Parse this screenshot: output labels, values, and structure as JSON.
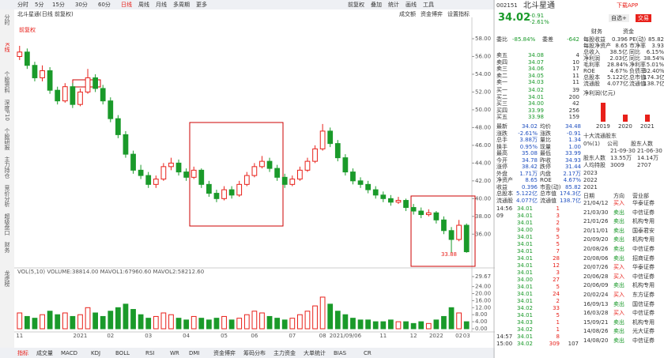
{
  "toolbar": {
    "tabs": [
      "分时",
      "5分",
      "15分",
      "30分",
      "60分",
      "日线",
      "周线",
      "月线",
      "多周期",
      "更多"
    ],
    "tools": [
      "前复权",
      "叠加",
      "统计",
      "画线",
      "工具"
    ]
  },
  "subbar": {
    "title": "北斗星通(日线 前复权)",
    "tools": [
      "成交额",
      "资金博弈",
      "设置指标"
    ]
  },
  "sidebar": [
    "分时",
    "K线",
    "个股资料",
    "深度F10",
    "个股研报",
    "主力持仓",
    "竞价分析",
    "超级盘口",
    "财务",
    "龙虎榜"
  ],
  "chart_data": {
    "type": "candlestick",
    "marker": "前复权",
    "annotation": "33.88",
    "categories": [
      "11",
      null,
      null,
      null,
      null,
      null,
      null,
      null,
      "2021",
      null,
      null,
      null,
      "02",
      null,
      null,
      null,
      null,
      "03",
      null,
      null,
      null,
      null,
      "04",
      null,
      null,
      null,
      null,
      "05",
      null,
      null,
      null,
      "06",
      null,
      null,
      null,
      null,
      "07",
      null,
      null,
      null,
      "08",
      null,
      null,
      "2021/09/06",
      null,
      null,
      null,
      null,
      "11",
      null,
      null,
      null,
      "12",
      null,
      null,
      "2022",
      null,
      null,
      "02",
      "03"
    ],
    "candles": [
      [
        56.0,
        57.2,
        55.6,
        56.5
      ],
      [
        56.5,
        56.9,
        54.6,
        55.0
      ],
      [
        55.0,
        55.4,
        53.2,
        53.6
      ],
      [
        53.6,
        55.0,
        53.2,
        54.4
      ],
      [
        54.4,
        54.8,
        51.8,
        52.2
      ],
      [
        52.2,
        52.6,
        50.6,
        51.0
      ],
      [
        51.0,
        53.0,
        50.8,
        52.6
      ],
      [
        52.6,
        53.0,
        50.2,
        50.6
      ],
      [
        50.6,
        52.4,
        50.4,
        52.0
      ],
      [
        52.0,
        54.6,
        51.8,
        53.6
      ],
      [
        53.6,
        54.0,
        52.0,
        52.4
      ],
      [
        52.4,
        52.8,
        50.6,
        51.0
      ],
      [
        51.0,
        51.4,
        48.6,
        49.0
      ],
      [
        49.0,
        49.4,
        46.8,
        47.2
      ],
      [
        47.2,
        47.6,
        44.6,
        45.0
      ],
      [
        45.0,
        45.4,
        42.8,
        43.2
      ],
      [
        43.2,
        43.8,
        42.2,
        42.6
      ],
      [
        42.6,
        43.0,
        41.2,
        41.6
      ],
      [
        41.6,
        42.6,
        41.2,
        42.2
      ],
      [
        42.2,
        44.0,
        42.0,
        43.6
      ],
      [
        43.6,
        44.6,
        43.2,
        44.0
      ],
      [
        44.0,
        44.4,
        42.6,
        43.0
      ],
      [
        43.0,
        43.4,
        42.0,
        42.4
      ],
      [
        42.4,
        43.6,
        42.2,
        43.2
      ],
      [
        43.2,
        43.4,
        41.2,
        41.6
      ],
      [
        41.6,
        42.0,
        40.2,
        40.6
      ],
      [
        40.6,
        41.0,
        39.6,
        40.0
      ],
      [
        40.0,
        41.4,
        39.8,
        41.0
      ],
      [
        41.0,
        41.4,
        40.0,
        40.4
      ],
      [
        40.4,
        42.0,
        40.2,
        41.6
      ],
      [
        41.6,
        43.0,
        41.4,
        42.6
      ],
      [
        42.6,
        44.0,
        42.4,
        43.6
      ],
      [
        43.6,
        44.8,
        43.4,
        44.2
      ],
      [
        44.2,
        44.6,
        43.0,
        43.4
      ],
      [
        43.4,
        43.8,
        42.0,
        42.4
      ],
      [
        42.4,
        42.8,
        41.2,
        41.6
      ],
      [
        41.6,
        42.6,
        41.4,
        42.2
      ],
      [
        42.2,
        43.6,
        42.0,
        43.2
      ],
      [
        43.2,
        44.6,
        43.0,
        44.2
      ],
      [
        44.2,
        46.0,
        44.0,
        45.6
      ],
      [
        45.6,
        48.4,
        45.4,
        47.6
      ],
      [
        47.6,
        48.0,
        45.8,
        46.2
      ],
      [
        46.2,
        46.6,
        44.2,
        44.6
      ],
      [
        44.6,
        45.0,
        42.6,
        43.0
      ],
      [
        43.0,
        43.4,
        41.6,
        42.0
      ],
      [
        42.0,
        42.4,
        41.2,
        41.6
      ],
      [
        41.6,
        42.0,
        40.6,
        41.0
      ],
      [
        41.0,
        41.4,
        40.0,
        40.4
      ],
      [
        40.4,
        40.8,
        39.6,
        40.0
      ],
      [
        40.0,
        40.4,
        39.2,
        39.6
      ],
      [
        39.6,
        40.2,
        39.4,
        39.8
      ],
      [
        39.8,
        40.0,
        38.6,
        39.0
      ],
      [
        39.0,
        39.4,
        38.2,
        38.6
      ],
      [
        38.6,
        39.0,
        37.8,
        38.2
      ],
      [
        38.2,
        38.8,
        38.0,
        38.4
      ],
      [
        38.4,
        38.6,
        37.2,
        37.6
      ],
      [
        37.6,
        38.0,
        36.0,
        36.4
      ],
      [
        36.4,
        36.8,
        33.9,
        35.4
      ],
      [
        35.4,
        37.6,
        35.2,
        37.0
      ],
      [
        37.0,
        37.2,
        33.9,
        34.02
      ]
    ],
    "up_color": "#e8201a",
    "down_color": "#1a9a2a",
    "ylim": [
      33,
      58.8
    ],
    "yticks": [
      {
        "value": 36,
        "label": "36.00"
      },
      {
        "value": 38,
        "label": "38.00"
      },
      {
        "value": 40,
        "label": "40.00"
      },
      {
        "value": 42,
        "label": "42.00"
      },
      {
        "value": 44,
        "label": "44.00"
      },
      {
        "value": 46,
        "label": "46.00"
      },
      {
        "value": 48,
        "label": "48.00"
      },
      {
        "value": 50,
        "label": "50.00"
      },
      {
        "value": 52,
        "label": "52.00"
      },
      {
        "value": 54,
        "label": "54.00"
      },
      {
        "value": 56,
        "label": "56.00"
      },
      {
        "value": 58,
        "label": "58.00"
      }
    ],
    "volume": {
      "legend": "VOL(5,10) VOLUME:38814.00 MAVOL1:67960.60 MAVOL2:58212.60",
      "values": [
        9,
        7,
        6,
        8,
        10,
        8,
        9,
        7,
        8,
        12,
        9,
        7,
        10,
        12,
        14,
        11,
        8,
        6,
        7,
        9,
        8,
        6,
        5,
        7,
        6,
        5,
        6,
        7,
        5,
        6,
        8,
        10,
        9,
        7,
        6,
        5,
        6,
        8,
        10,
        13,
        18,
        14,
        10,
        8,
        6,
        5,
        5,
        4,
        4,
        5,
        4,
        4,
        3,
        4,
        3,
        5,
        7,
        12,
        9,
        4
      ],
      "ylim": [
        0,
        29.67
      ],
      "yticks": [
        {
          "value": 0,
          "label": "0.00"
        },
        {
          "value": 4,
          "label": "4.00"
        },
        {
          "value": 8,
          "label": "8.00"
        },
        {
          "value": 12,
          "label": "12.00"
        },
        {
          "value": 16,
          "label": "16.00"
        },
        {
          "value": 20,
          "label": "20.00"
        },
        {
          "value": 24,
          "label": "24.00"
        },
        29.67
      ]
    }
  },
  "bottom_tabs": [
    "指标",
    "成交量",
    "MACD",
    "KDJ",
    "BOLL",
    "RSI",
    "WR",
    "DMI",
    "资金博弈",
    "筹码分布",
    "主力资金",
    "大单统计",
    "BIAS",
    "CR"
  ],
  "quote": {
    "code": "002151",
    "name": "北斗星通",
    "price": "34.02",
    "change": "-0.91",
    "pct": "-2.61%",
    "buttons": [
      "自选+",
      "交易"
    ],
    "link": "下载APP"
  },
  "book": {
    "ratio_label": "委比",
    "ratio": "-85.84%",
    "diff_label": "委差",
    "diff": "-642",
    "sells": [
      [
        "卖五",
        "34.08",
        "4"
      ],
      [
        "卖四",
        "34.07",
        "10"
      ],
      [
        "卖三",
        "34.06",
        "17"
      ],
      [
        "卖二",
        "34.05",
        "11"
      ],
      [
        "卖一",
        "34.03",
        "11"
      ]
    ],
    "buys": [
      [
        "买一",
        "34.02",
        "39"
      ],
      [
        "买二",
        "34.01",
        "200"
      ],
      [
        "买三",
        "34.00",
        "42"
      ],
      [
        "买四",
        "33.99",
        "256"
      ],
      [
        "买五",
        "33.98",
        "159"
      ]
    ]
  },
  "stats": [
    [
      "最新",
      "34.02",
      "均价",
      "34.48"
    ],
    [
      "涨跌",
      "-2.61%",
      "涨跌",
      "-0.91"
    ],
    [
      "总手",
      "3.88万",
      "量比",
      "1.34"
    ],
    [
      "换手",
      "0.95%",
      "现量",
      "1.00"
    ],
    [
      "最高",
      "35.08",
      "最低",
      "33.99"
    ],
    [
      "今开",
      "34.78",
      "昨收",
      "34.93"
    ],
    [
      "涨停",
      "38.42",
      "跌停",
      "31.44"
    ],
    [
      "外盘",
      "1.71万",
      "内盘",
      "2.17万"
    ],
    [
      "净资产",
      "8.65",
      "ROE",
      "4.67%"
    ],
    [
      "收益",
      "0.396",
      "市盈(动)",
      "85.82"
    ],
    [
      "总股本",
      "5.122亿",
      "总市值",
      "174.3亿"
    ],
    [
      "流通股",
      "4.077亿",
      "流通值",
      "138.7亿"
    ]
  ],
  "trades": [
    [
      "14:56",
      "34.01",
      "1"
    ],
    [
      "09",
      "34.01",
      "3"
    ],
    [
      "",
      "34.01",
      "2"
    ],
    [
      "",
      "34.00",
      "9"
    ],
    [
      "",
      "34.01",
      "5"
    ],
    [
      "",
      "34.01",
      "5"
    ],
    [
      "",
      "34.01",
      "7"
    ],
    [
      "",
      "34.01",
      "28"
    ],
    [
      "",
      "34.01",
      "12"
    ],
    [
      "",
      "34.01",
      "3"
    ],
    [
      "",
      "34.00",
      "27"
    ],
    [
      "",
      "34.01",
      "5"
    ],
    [
      "",
      "34.01",
      "24"
    ],
    [
      "",
      "34.01",
      "2"
    ],
    [
      "",
      "34.02",
      "33"
    ],
    [
      "",
      "34.01",
      "5"
    ],
    [
      "",
      "34.03",
      "1"
    ],
    [
      "",
      "34.02",
      "1"
    ],
    [
      "14:57",
      "34.01",
      "8"
    ],
    [
      "15:00",
      "34.02",
      "309",
      "107"
    ]
  ],
  "finance": {
    "tabs": [
      "财务",
      "资金"
    ],
    "rows": [
      [
        "每股收益",
        "0.396",
        "PE(动)",
        "85.82"
      ],
      [
        "每股净资产",
        "8.65",
        "市净率",
        "3.93"
      ],
      [
        "总收入",
        "38.5亿",
        "同比",
        "6.15%"
      ],
      [
        "净利润",
        "2.03亿",
        "同比",
        "38.54%"
      ],
      [
        "毛利率",
        "28.84%",
        "净利率",
        "5.01%"
      ],
      [
        "ROE",
        "4.67%",
        "负债率",
        "32.40%"
      ],
      [
        "总股本",
        "5.122亿",
        "总市值",
        "174.3亿"
      ],
      [
        "流通股",
        "4.077亿",
        "流通值",
        "138.7亿"
      ]
    ],
    "profit": {
      "title": "净利润(亿元)",
      "years": [
        "2019",
        "2020",
        "2021"
      ],
      "values": [
        1.6,
        0.6,
        0.6
      ],
      "ylim": [
        0,
        2
      ]
    }
  },
  "holders": {
    "title": "十大流通股东",
    "row0": [
      "0%(1)",
      "公司",
      "股东人数"
    ],
    "cols": [
      "",
      "21-09-30",
      "21-06-30"
    ],
    "rows": [
      [
        "股东人数",
        "13.55万",
        "14.14万"
      ],
      [
        "人均持股",
        "3009",
        "2707"
      ]
    ],
    "years": [
      "2023",
      "2022",
      "2021"
    ]
  },
  "lhb": {
    "header": [
      "日期",
      "方向",
      "营业部"
    ],
    "rows": [
      [
        "21/04/12",
        "买入",
        "华泰证券"
      ],
      [
        "21/03/30",
        "卖出",
        "中信证券"
      ],
      [
        "21/01/26",
        "卖出",
        "机构专用"
      ],
      [
        "20/11/01",
        "卖出",
        "国泰君安"
      ],
      [
        "20/09/20",
        "卖出",
        "机构专用"
      ],
      [
        "20/08/26",
        "卖出",
        "中信证券"
      ],
      [
        "20/08/06",
        "卖出",
        "招商证券"
      ],
      [
        "20/07/26",
        "买入",
        "华泰证券"
      ],
      [
        "20/06/28",
        "买入",
        "中信证券"
      ],
      [
        "20/06/09",
        "卖出",
        "机构专用"
      ],
      [
        "20/02/24",
        "买入",
        "东方证券"
      ],
      [
        "16/09/13",
        "卖出",
        "国信证券"
      ],
      [
        "16/03/28",
        "买入",
        "中信证券"
      ],
      [
        "15/09/21",
        "卖出",
        "机构专用"
      ],
      [
        "14/08/26",
        "卖出",
        "光大证券"
      ],
      [
        "14/08/20",
        "卖出",
        "中信证券"
      ]
    ]
  }
}
